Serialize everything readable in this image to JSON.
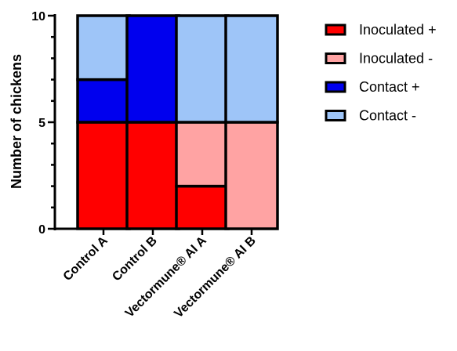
{
  "chart_data": {
    "type": "bar",
    "stacked": true,
    "categories": [
      "Control A",
      "Control B",
      "Vectormune® AI A",
      "Vectormune® AI B"
    ],
    "series": [
      {
        "name": "Inoculated +",
        "color": "#ff0000",
        "values": [
          5,
          5,
          2,
          0
        ]
      },
      {
        "name": "Inoculated -",
        "color": "#ffa3a3",
        "values": [
          0,
          0,
          3,
          5
        ]
      },
      {
        "name": "Contact +",
        "color": "#0000ee",
        "values": [
          2,
          5,
          0,
          0
        ]
      },
      {
        "name": "Contact -",
        "color": "#9ec5f8",
        "values": [
          3,
          0,
          5,
          5
        ]
      }
    ],
    "ylabel": "Number of chickens",
    "ylim": [
      0,
      10
    ],
    "yticks": [
      0,
      5,
      10
    ],
    "legend_position": "right",
    "grid": false
  }
}
